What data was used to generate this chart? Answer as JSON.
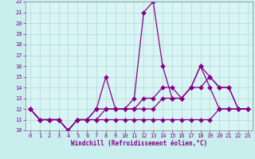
{
  "title": "",
  "xlabel": "Windchill (Refroidissement éolien,°C)",
  "ylabel": "",
  "bg_color": "#c8eeee",
  "plot_bg_color": "#d8f4f4",
  "line_color": "#880088",
  "grid_color": "#b0d8d8",
  "spine_color": "#888888",
  "font_color": "#880088",
  "xlim": [
    -0.5,
    23.5
  ],
  "ylim": [
    10,
    22
  ],
  "xticks": [
    0,
    1,
    2,
    3,
    4,
    5,
    6,
    7,
    8,
    9,
    10,
    11,
    12,
    13,
    14,
    15,
    16,
    17,
    18,
    19,
    20,
    21,
    22,
    23
  ],
  "yticks": [
    10,
    11,
    12,
    13,
    14,
    15,
    16,
    17,
    18,
    19,
    20,
    21,
    22
  ],
  "series1_x": [
    0,
    1,
    2,
    3,
    4,
    5,
    6,
    7,
    8,
    9,
    10,
    11,
    12,
    13,
    14,
    15,
    16,
    17,
    18,
    19,
    20,
    21,
    22,
    23
  ],
  "series1_y": [
    12,
    11,
    11,
    11,
    10,
    11,
    11,
    12,
    15,
    12,
    12,
    13,
    21,
    22,
    16,
    13,
    13,
    14,
    16,
    14,
    12,
    12,
    12,
    12
  ],
  "series2_x": [
    0,
    1,
    2,
    3,
    4,
    5,
    6,
    7,
    8,
    9,
    10,
    11,
    12,
    13,
    14,
    15,
    16,
    17,
    18,
    19,
    20,
    21,
    22,
    23
  ],
  "series2_y": [
    12,
    11,
    11,
    11,
    10,
    11,
    11,
    11,
    12,
    12,
    12,
    12,
    12,
    12,
    13,
    13,
    13,
    14,
    14,
    15,
    14,
    14,
    12,
    12
  ],
  "series3_x": [
    0,
    1,
    2,
    3,
    4,
    5,
    6,
    7,
    8,
    9,
    10,
    11,
    12,
    13,
    14,
    15,
    16,
    17,
    18,
    19,
    20,
    21,
    22,
    23
  ],
  "series3_y": [
    12,
    11,
    11,
    11,
    10,
    11,
    11,
    12,
    12,
    12,
    12,
    12,
    13,
    13,
    14,
    14,
    13,
    14,
    16,
    15,
    14,
    14,
    12,
    12
  ],
  "series4_x": [
    0,
    1,
    2,
    3,
    4,
    5,
    6,
    7,
    8,
    9,
    10,
    11,
    12,
    13,
    14,
    15,
    16,
    17,
    18,
    19,
    20,
    21,
    22,
    23
  ],
  "series4_y": [
    12,
    11,
    11,
    11,
    10,
    11,
    11,
    11,
    11,
    11,
    11,
    11,
    11,
    11,
    11,
    11,
    11,
    11,
    11,
    11,
    12,
    12,
    12,
    12
  ],
  "marker_size": 3,
  "linewidth": 0.9,
  "xlabel_fontsize": 5.5,
  "tick_fontsize": 5.0
}
